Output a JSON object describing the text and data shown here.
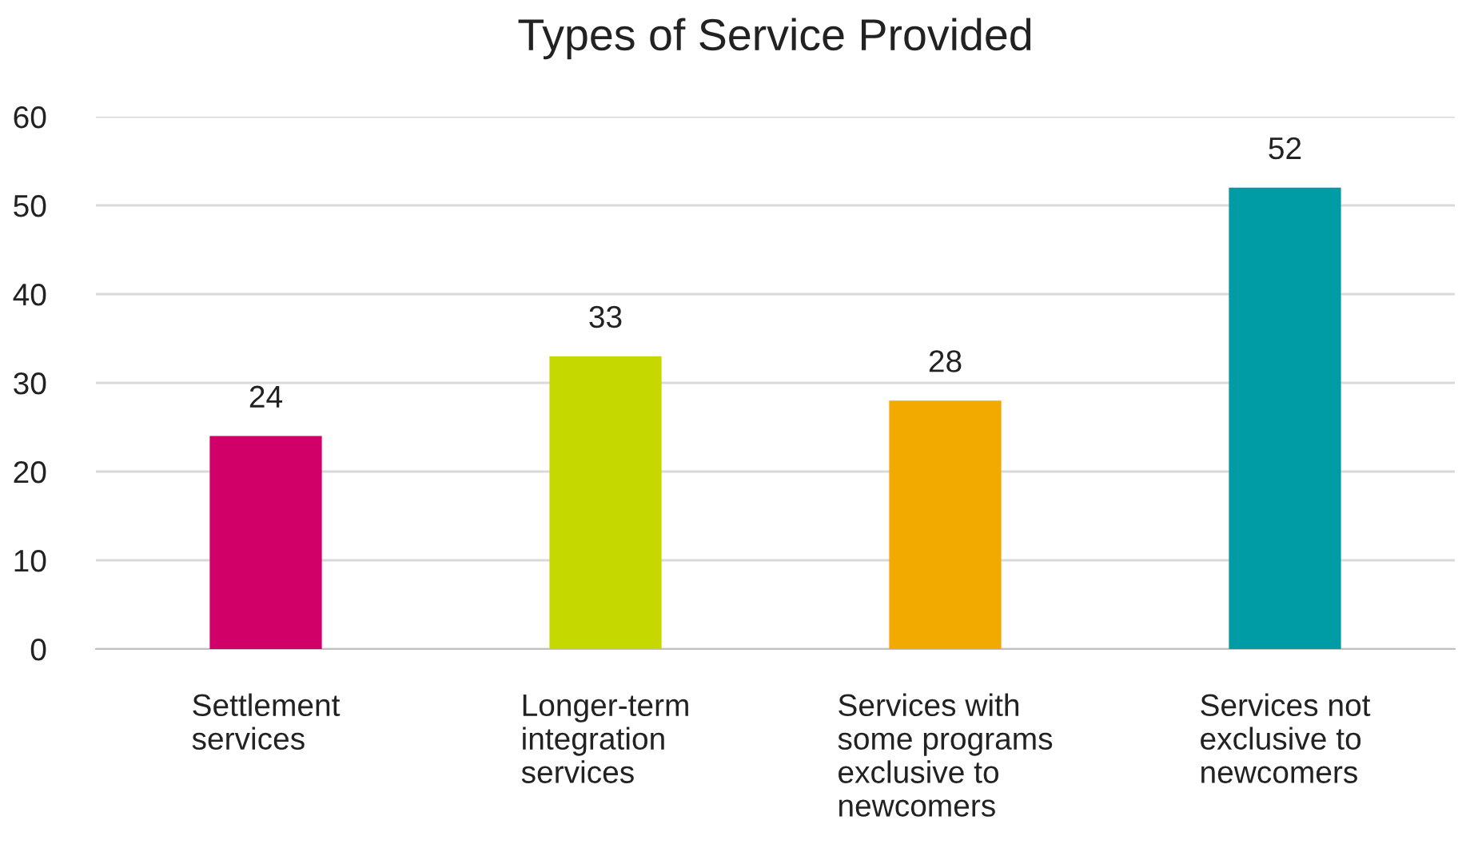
{
  "chart_data": {
    "type": "bar",
    "title": "Types of Service Provided",
    "categories": [
      "Settlement\nservices",
      "Longer-term\nintegration\nservices",
      "Services with\nsome programs\nexclusive to\nnewcomers",
      "Services not\nexclusive to\nnewcomers"
    ],
    "values": [
      24,
      33,
      28,
      52
    ],
    "colors": [
      "#d10069",
      "#c5d900",
      "#f2a900",
      "#009ca6"
    ],
    "ylim": [
      0,
      60
    ],
    "yticks": [
      0,
      10,
      20,
      30,
      40,
      50,
      60
    ],
    "grid": "y",
    "data_labels": true
  }
}
